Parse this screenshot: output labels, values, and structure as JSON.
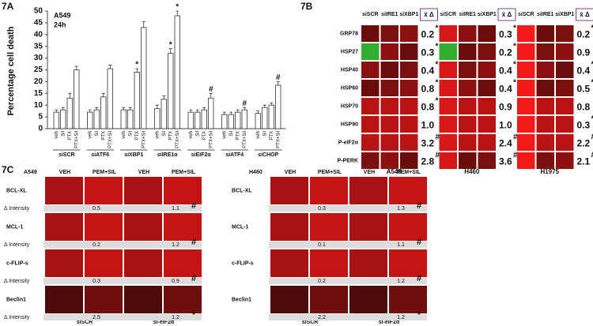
{
  "chart_data": {
    "type": "bar",
    "panel": "7A",
    "ylabel": "Percentage cell death",
    "annotations": [
      "A549",
      "24h"
    ],
    "categories": [
      "siSCR",
      "siATF6",
      "siXBP1",
      "siIRE1α",
      "siEIF2α",
      "siATF4",
      "siCHOP"
    ],
    "series": [
      {
        "name": "veh",
        "color": "#ffffff",
        "values": [
          7,
          7,
          8,
          8.5,
          7,
          6,
          6.5
        ],
        "errors": [
          1,
          1,
          1,
          1.5,
          1,
          1,
          1
        ],
        "markers": [
          null,
          null,
          null,
          null,
          null,
          null,
          null
        ]
      },
      {
        "name": "Sil",
        "color": "#ffffff",
        "values": [
          8,
          8,
          8,
          12.5,
          7,
          6,
          9
        ],
        "errors": [
          1,
          1,
          1,
          1.5,
          1,
          1,
          1
        ],
        "markers": [
          null,
          null,
          null,
          null,
          null,
          null,
          null
        ]
      },
      {
        "name": "PTX",
        "color": "#ffffff",
        "values": [
          13,
          13.5,
          24,
          32,
          8,
          7,
          10
        ],
        "errors": [
          2,
          1.5,
          1.5,
          2,
          1,
          1,
          1
        ],
        "markers": [
          null,
          null,
          "*",
          "*",
          null,
          null,
          null
        ]
      },
      {
        "name": "PTX+Sil",
        "color": "#ffffff",
        "values": [
          25,
          25.5,
          43,
          48,
          13,
          8,
          18.5
        ],
        "errors": [
          1.5,
          1.5,
          2.5,
          2,
          2,
          1,
          1.5
        ],
        "markers": [
          null,
          null,
          null,
          "*",
          "#",
          "#",
          "#"
        ]
      }
    ],
    "ylim": [
      0,
      50
    ],
    "yticks": [
      0,
      5,
      10,
      15,
      20,
      25,
      30,
      35,
      40,
      45,
      50
    ],
    "grid": false
  },
  "panel_b": {
    "panel": "7B",
    "columns": [
      "siSCR",
      "siIRE1",
      "siXBP1"
    ],
    "ratio_header": "x̄ Δ",
    "rows": [
      "GRP78",
      "HSP27",
      "HSP40",
      "HSP60",
      "HSP70",
      "HSP90",
      "P-eIF2α",
      "P-PERK"
    ],
    "groups": [
      {
        "name": "A549",
        "values": [
          "0.2",
          "0.3",
          "0.4",
          "0.8",
          "0.8",
          "1.0",
          "3.2",
          "2.8"
        ],
        "marks": [
          "*",
          "*",
          "*",
          "*",
          "*",
          null,
          "#",
          "#"
        ]
      },
      {
        "name": "H460",
        "values": [
          "0.3",
          "0.2",
          "0.4",
          "0.4",
          "0.9",
          "1.0",
          "2.4",
          "3.6"
        ],
        "marks": [
          "*",
          "*",
          "*",
          "*",
          null,
          null,
          "#",
          "#"
        ]
      },
      {
        "name": "H1975",
        "values": [
          "0.2",
          "0.9",
          "0.4",
          "0.5",
          "0.8",
          "0.3",
          "2.2",
          "2.1"
        ],
        "marks": [
          "*",
          null,
          "*",
          "*",
          null,
          "*",
          "#",
          "#"
        ]
      }
    ]
  },
  "panel_c": {
    "panel": "7C",
    "columns": [
      "VEH",
      "PEM+SIL",
      "VEH",
      "PEM+SIL"
    ],
    "delta_label": "Δ Intensity",
    "groups": [
      "siSCR",
      "si-eIF2α"
    ],
    "rows": [
      "BCL-XL",
      "MCL-1",
      "c-FLIP-s",
      "Beclin1"
    ],
    "blocks": [
      {
        "cell": "A549",
        "values": [
          [
            0.5,
            1.1
          ],
          [
            0.2,
            1.2
          ],
          [
            0.3,
            0.9
          ],
          [
            2.5,
            1.2
          ]
        ],
        "marks": [
          "#",
          "#",
          "#",
          "*"
        ]
      },
      {
        "cell": "H460",
        "values": [
          [
            0.3,
            1.3
          ],
          [
            0.1,
            1.1
          ],
          [
            0.2,
            1.2
          ],
          [
            2.2,
            1.2
          ]
        ],
        "marks": [
          "#",
          "#",
          "#",
          "*"
        ]
      }
    ]
  }
}
